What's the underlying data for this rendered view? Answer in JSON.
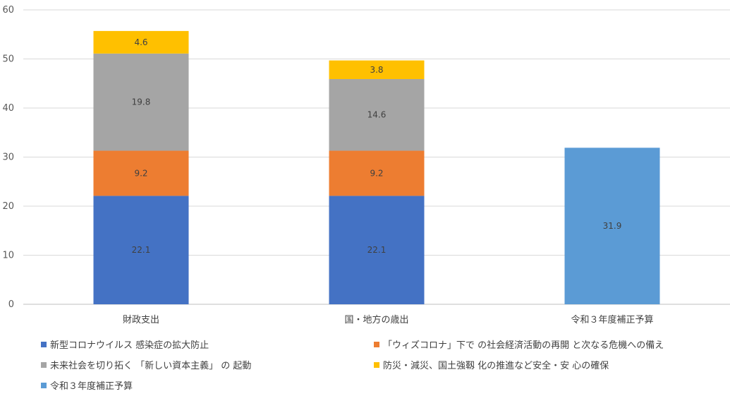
{
  "chart_data": {
    "type": "bar",
    "stacked": true,
    "categories": [
      "財政支出",
      "国・地方の歳出",
      "令和３年度補正予算"
    ],
    "series": [
      {
        "name": "新型コロナウイルス 感染症の拡大防止",
        "values": [
          22.1,
          22.1,
          null
        ],
        "color": "#4472C4"
      },
      {
        "name": "「ウィズコロナ」下で の社会経済活動の再開 と次なる危機への備え",
        "values": [
          9.2,
          9.2,
          null
        ],
        "color": "#ED7D31"
      },
      {
        "name": "未来社会を切り拓く 「新しい資本主義」 の 起動",
        "values": [
          19.8,
          14.6,
          null
        ],
        "color": "#A5A5A5"
      },
      {
        "name": "防災・減災、国土強靱 化の推進など安全・安 心の確保",
        "values": [
          4.6,
          3.8,
          null
        ],
        "color": "#FFC000"
      },
      {
        "name": "令和３年度補正予算",
        "values": [
          null,
          null,
          31.9
        ],
        "color": "#5B9BD5"
      }
    ],
    "ylim": [
      0,
      60
    ],
    "yticks": [
      0,
      10,
      20,
      30,
      40,
      50,
      60
    ],
    "grid": true,
    "legend_position": "bottom",
    "title": "",
    "xlabel": "",
    "ylabel": ""
  }
}
